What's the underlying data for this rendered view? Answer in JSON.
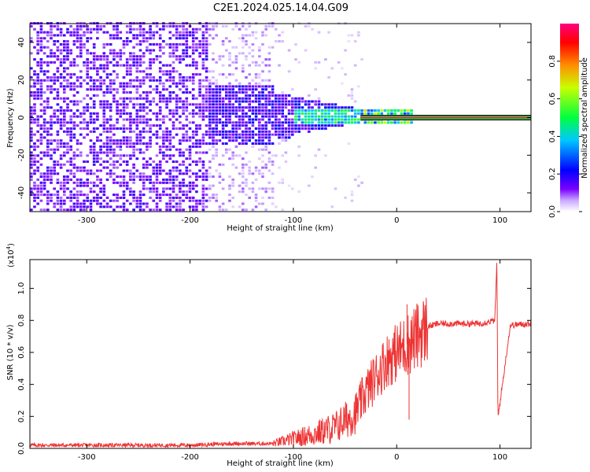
{
  "title": "C2E1.2024.025.14.04.G09",
  "chart_data": [
    {
      "type": "heatmap",
      "xlabel": "Height of straight line (km)",
      "ylabel": "Frequency (Hz)",
      "xlim": [
        -355,
        130
      ],
      "ylim": [
        -50,
        50
      ],
      "xticks": [
        -300,
        -200,
        -100,
        0,
        100
      ],
      "yticks": [
        -40,
        -20,
        0,
        20,
        40
      ],
      "colorbar": {
        "label": "Normalized spectral amplitude",
        "range": [
          0.0,
          1.0
        ],
        "ticks": [
          "0.0",
          "0.2",
          "0.4",
          "0.6",
          "0.8"
        ],
        "tick_values": [
          0.0,
          0.2,
          0.4,
          0.6,
          0.8
        ]
      },
      "colormap": [
        "#ffffff",
        "#7a00ff",
        "#0000ff",
        "#00ffff",
        "#00ff00",
        "#ffff00",
        "#ff0000",
        "#ff0080"
      ],
      "signal_line": {
        "x_range": [
          -35,
          130
        ],
        "frequency": 0
      }
    },
    {
      "type": "line",
      "xlabel": "Height of straight line (km)",
      "ylabel": "SNR (10 * v/v)",
      "y_multiplier": "(x10",
      "y_multiplier_exp": "4",
      "y_multiplier_close": ")",
      "xlim": [
        -355,
        130
      ],
      "ylim": [
        0.0,
        1.18
      ],
      "xticks": [
        -300,
        -200,
        -100,
        0,
        100
      ],
      "yticks": [
        "0.0",
        "0.2",
        "0.4",
        "0.6",
        "0.8",
        "1.0"
      ],
      "ytick_values": [
        0.0,
        0.2,
        0.4,
        0.6,
        0.8,
        1.0
      ],
      "color": "#ee3333",
      "series_summary": [
        {
          "x": -355,
          "y": 0.02
        },
        {
          "x": -200,
          "y": 0.02
        },
        {
          "x": -160,
          "y": 0.03
        },
        {
          "x": -120,
          "y": 0.03
        },
        {
          "x": -100,
          "y": 0.06
        },
        {
          "x": -80,
          "y": 0.09
        },
        {
          "x": -60,
          "y": 0.13
        },
        {
          "x": -40,
          "y": 0.22
        },
        {
          "x": -30,
          "y": 0.35
        },
        {
          "x": -20,
          "y": 0.45
        },
        {
          "x": -10,
          "y": 0.55
        },
        {
          "x": 0,
          "y": 0.6
        },
        {
          "x": 10,
          "y": 0.65
        },
        {
          "x": 20,
          "y": 0.7
        },
        {
          "x": 30,
          "y": 0.76
        },
        {
          "x": 40,
          "y": 0.78
        },
        {
          "x": 60,
          "y": 0.78
        },
        {
          "x": 80,
          "y": 0.78
        },
        {
          "x": 95,
          "y": 0.8
        },
        {
          "x": 97,
          "y": 1.18
        },
        {
          "x": 98,
          "y": 0.19
        },
        {
          "x": 110,
          "y": 0.77
        },
        {
          "x": 130,
          "y": 0.78
        }
      ]
    }
  ]
}
